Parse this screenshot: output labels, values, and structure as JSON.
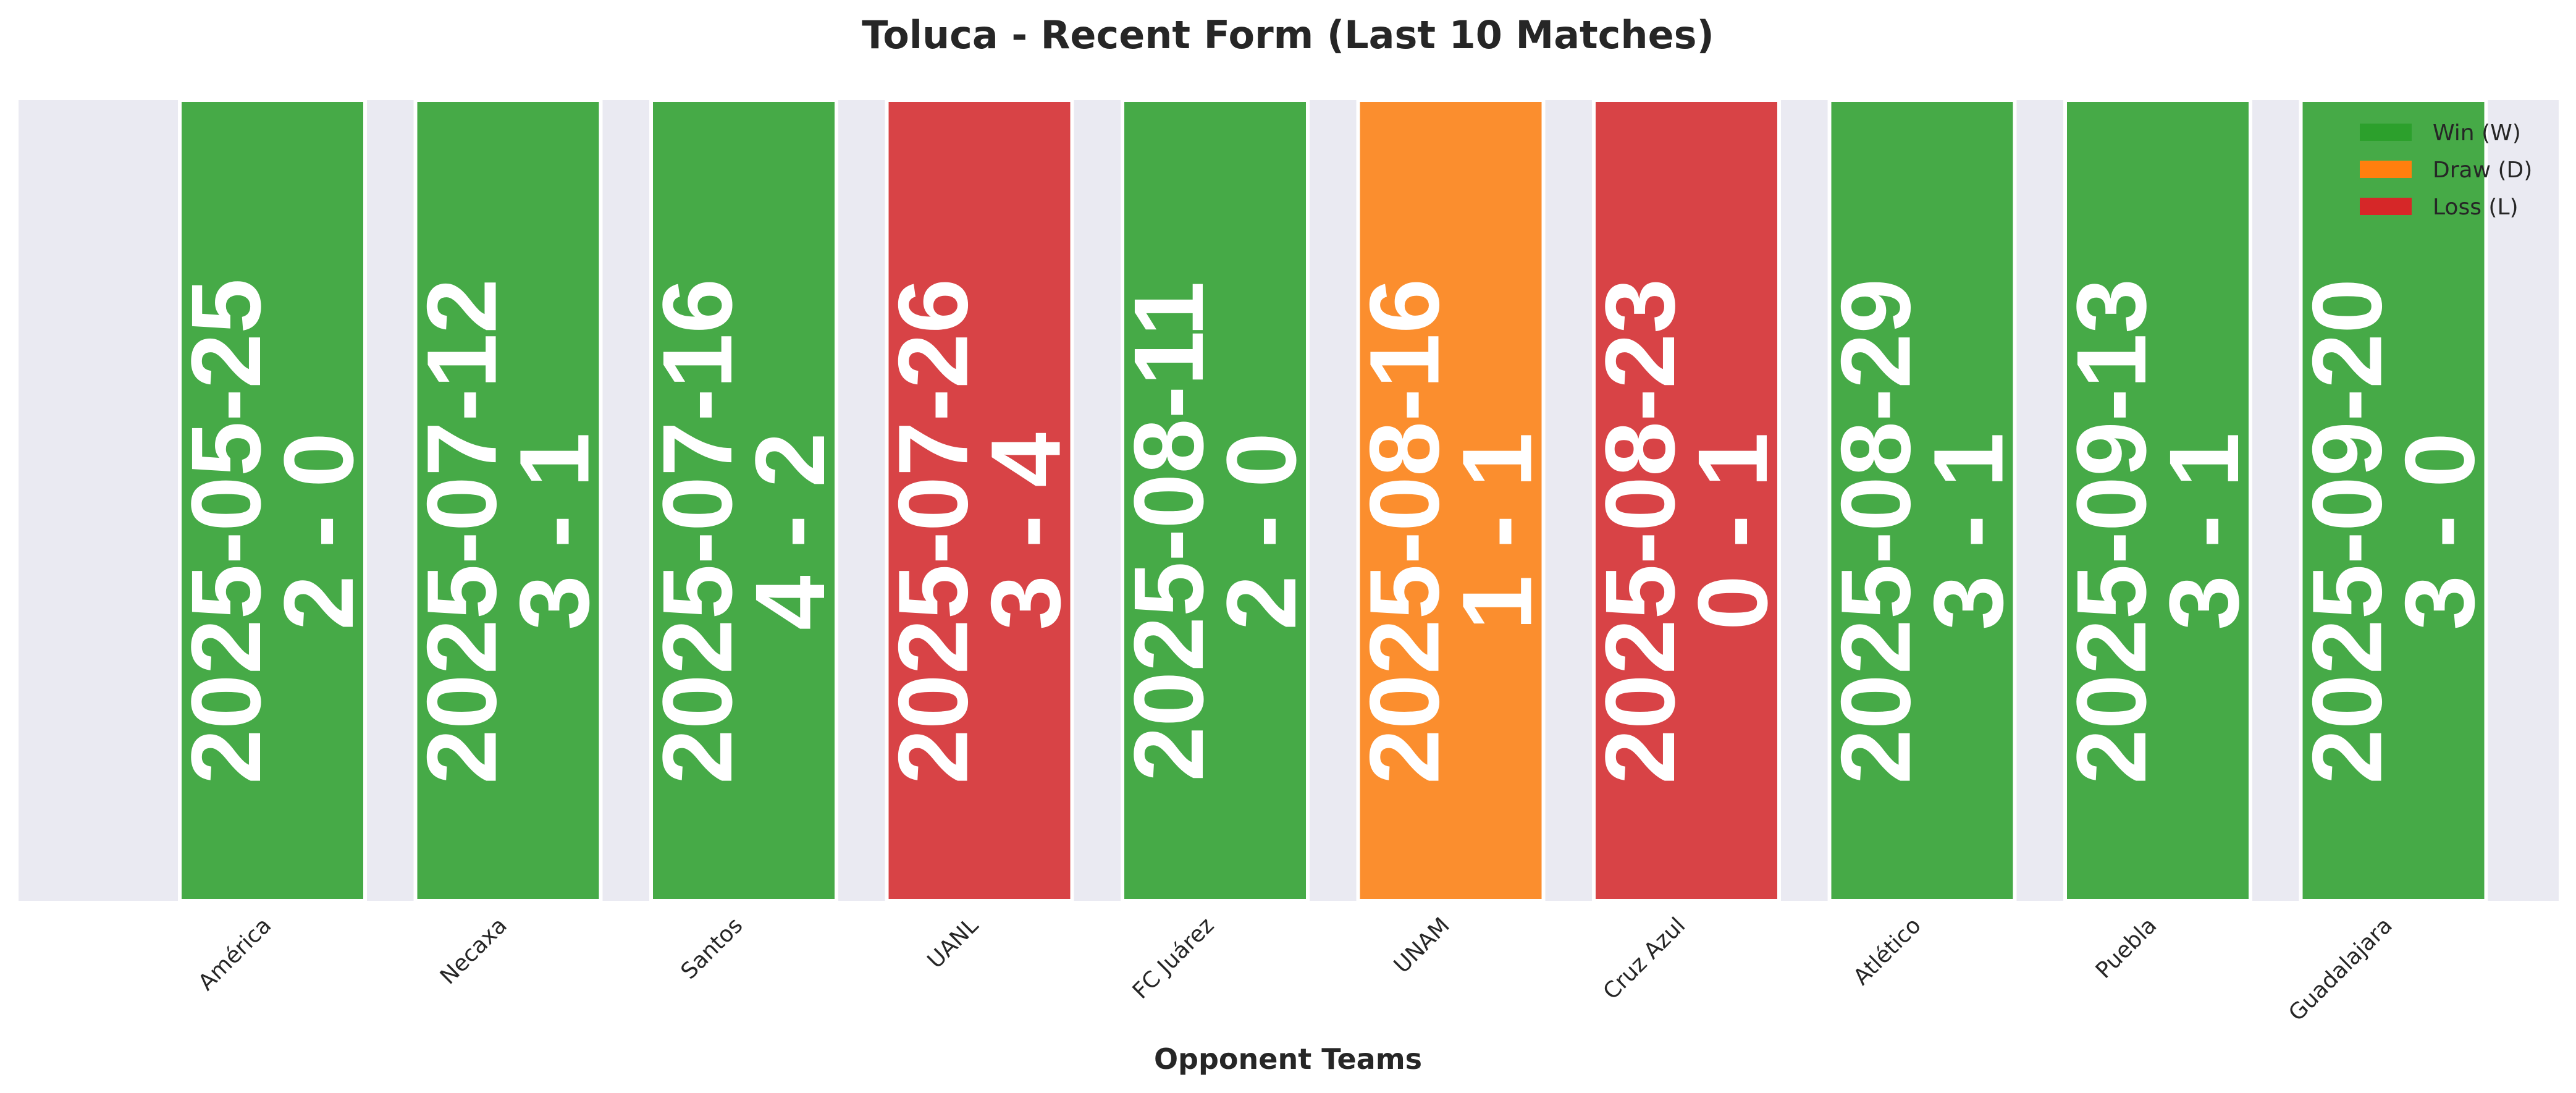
{
  "chart_data": {
    "type": "bar",
    "title": "Toluca - Recent Form (Last 10 Matches)",
    "xlabel": "Opponent Teams",
    "ylabel": "",
    "ylim": [
      0,
      1
    ],
    "grid": false,
    "legend_placement": "top-right",
    "categories": [
      "América",
      "Necaxa",
      "Santos",
      "UANL",
      "FC Juárez",
      "UNAM",
      "Cruz Azul",
      "Atlético",
      "Puebla",
      "Guadalajara"
    ],
    "values": [
      1,
      1,
      1,
      1,
      1,
      1,
      1,
      1,
      1,
      1
    ],
    "dates": [
      "2025-05-25",
      "2025-07-12",
      "2025-07-16",
      "2025-07-26",
      "2025-08-11",
      "2025-08-16",
      "2025-08-23",
      "2025-08-29",
      "2025-09-13",
      "2025-09-20"
    ],
    "scores": [
      "2 - 0",
      "3 - 1",
      "4 - 2",
      "3 - 4",
      "2 - 0",
      "1 - 1",
      "0 - 1",
      "3 - 1",
      "3 - 1",
      "3 - 0"
    ],
    "results": [
      "W",
      "W",
      "W",
      "L",
      "W",
      "D",
      "L",
      "W",
      "W",
      "W"
    ],
    "legend": [
      {
        "key": "W",
        "label": "Win (W)",
        "color": "#2ca02c"
      },
      {
        "key": "D",
        "label": "Draw (D)",
        "color": "#ff7f0e"
      },
      {
        "key": "L",
        "label": "Loss (L)",
        "color": "#d62728"
      }
    ],
    "bar_colors": {
      "W": "#46aa47",
      "D": "#fb8e2e",
      "L": "#d84346"
    },
    "plot_background": "#eaeaf2"
  }
}
